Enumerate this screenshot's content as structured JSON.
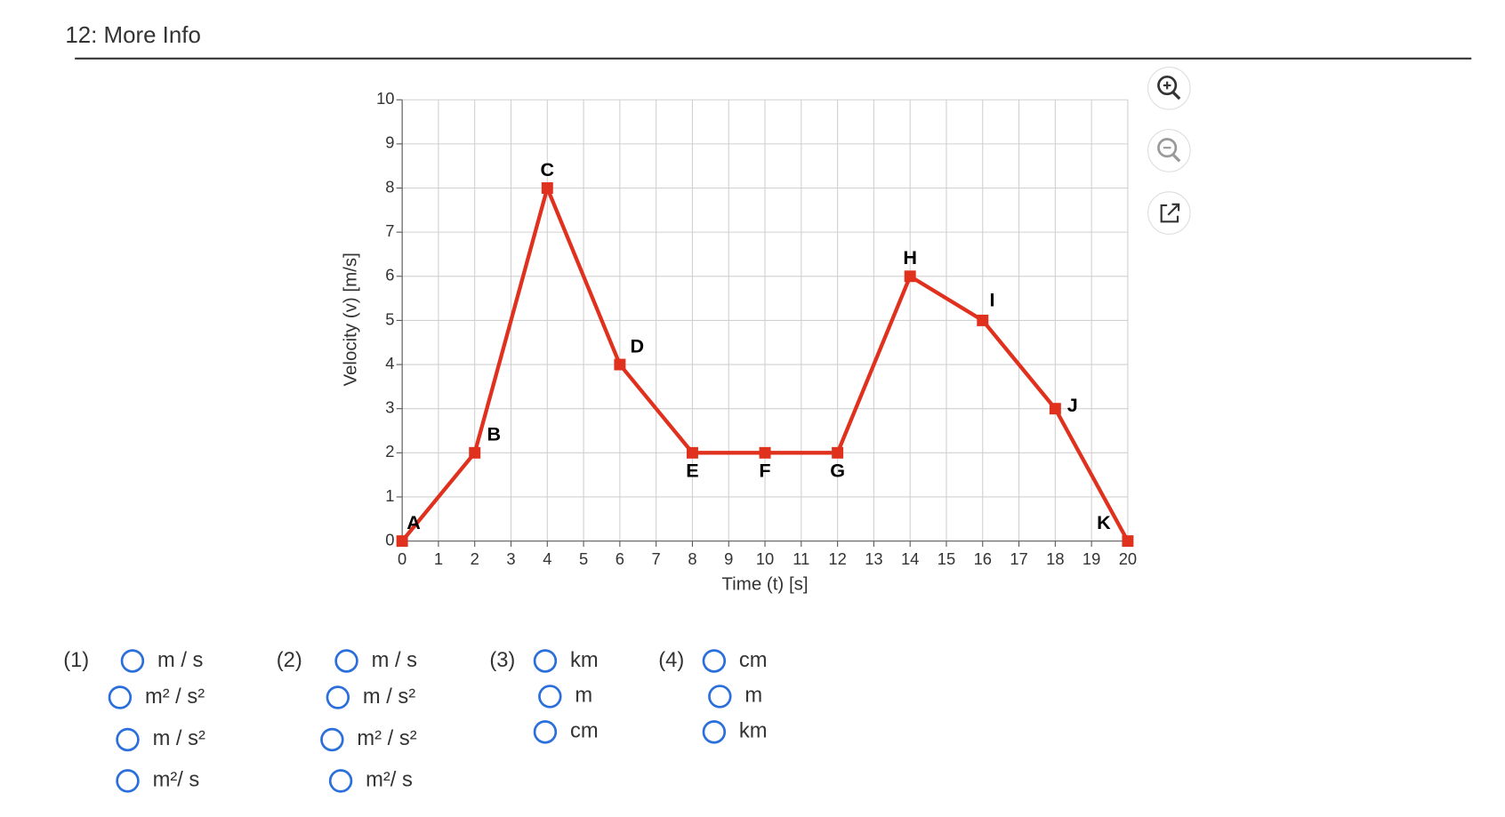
{
  "header": {
    "title": "12: More Info"
  },
  "chart_data": {
    "type": "line",
    "x_label": "Time (t) [s]",
    "y_label": "Velocity (v) [m/s]",
    "x": [
      0,
      2,
      4,
      6,
      8,
      10,
      12,
      14,
      16,
      18,
      20
    ],
    "series": [
      {
        "name": null,
        "color": "#e0301e",
        "values": [
          0,
          2,
          8,
          4,
          2,
          2,
          2,
          6,
          5,
          3,
          0
        ]
      }
    ],
    "point_labels": [
      "A",
      "B",
      "C",
      "D",
      "E",
      "F",
      "G",
      "H",
      "I",
      "J",
      "K"
    ],
    "xlim": [
      0,
      20
    ],
    "xticks": [
      0,
      1,
      2,
      3,
      4,
      5,
      6,
      7,
      8,
      9,
      10,
      11,
      12,
      13,
      14,
      15,
      16,
      17,
      18,
      19,
      20
    ],
    "ylim": [
      0,
      10
    ],
    "yticks": [
      0,
      1,
      2,
      3,
      4,
      5,
      6,
      7,
      8,
      9,
      10
    ],
    "grid": true
  },
  "questions": [
    {
      "number": "(1)",
      "options": [
        "m / s",
        "m² / s²",
        "m / s²",
        "m²/ s"
      ]
    },
    {
      "number": "(2)",
      "options": [
        "m / s",
        "m / s²",
        "m² / s²",
        "m²/ s"
      ]
    },
    {
      "number": "(3)",
      "options": [
        "km",
        "m",
        "cm"
      ]
    },
    {
      "number": "(4)",
      "options": [
        "cm",
        "m",
        "km"
      ]
    }
  ]
}
